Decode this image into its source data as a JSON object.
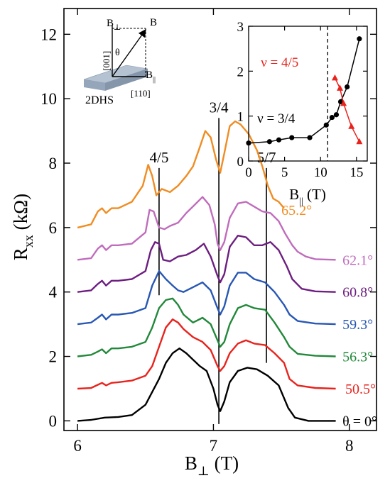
{
  "chart_data": [
    {
      "type": "line",
      "title": "",
      "xlabel_main": "B",
      "xlabel_sub": "⊥",
      "xlabel_unit": "(T)",
      "ylabel_main": "R",
      "ylabel_sub": "xx",
      "ylabel_unit": "(kΩ)",
      "xlim": [
        5.9,
        8.2
      ],
      "ylim": [
        -0.3,
        12.8
      ],
      "xticks": [
        6,
        7,
        8
      ],
      "yticks": [
        0,
        2,
        4,
        6,
        8,
        10,
        12
      ],
      "grid": false,
      "markers": [
        {
          "label": "4/5",
          "x": 6.6,
          "y_from": 3.9,
          "y_to": 7.85
        },
        {
          "label": "3/4",
          "x": 7.04,
          "y_from": -0.1,
          "y_to": 9.4
        },
        {
          "label": "5/7",
          "x": 7.39,
          "y_from": 1.8,
          "y_to": 7.85
        }
      ],
      "series": [
        {
          "name": "θ = 0°",
          "color": "#000000",
          "label_x": 7.95,
          "label_y": 0,
          "x": [
            6.0,
            6.1,
            6.2,
            6.3,
            6.4,
            6.5,
            6.6,
            6.65,
            6.7,
            6.75,
            6.8,
            6.85,
            6.9,
            6.95,
            7.0,
            7.03,
            7.05,
            7.08,
            7.12,
            7.18,
            7.25,
            7.32,
            7.4,
            7.48,
            7.55,
            7.6,
            7.7,
            7.9
          ],
          "y": [
            0.0,
            0.03,
            0.1,
            0.12,
            0.18,
            0.5,
            1.3,
            1.8,
            2.1,
            2.25,
            2.1,
            1.9,
            1.7,
            1.55,
            1.0,
            0.5,
            0.3,
            0.6,
            1.2,
            1.55,
            1.65,
            1.6,
            1.4,
            1.1,
            0.4,
            0.1,
            0.0,
            0.0
          ]
        },
        {
          "name": "50.5°",
          "color": "#e8231d",
          "label_x": 7.97,
          "label_y": 1.0,
          "x": [
            6.0,
            6.1,
            6.15,
            6.18,
            6.21,
            6.25,
            6.3,
            6.4,
            6.5,
            6.55,
            6.6,
            6.65,
            6.7,
            6.74,
            6.78,
            6.85,
            6.92,
            6.98,
            7.03,
            7.05,
            7.08,
            7.12,
            7.18,
            7.24,
            7.3,
            7.38,
            7.45,
            7.52,
            7.56,
            7.62,
            7.75,
            7.9
          ],
          "y": [
            1.0,
            1.02,
            1.12,
            1.18,
            1.1,
            1.18,
            1.2,
            1.25,
            1.4,
            1.7,
            2.3,
            2.9,
            3.15,
            3.05,
            2.85,
            2.6,
            2.45,
            2.2,
            1.7,
            1.55,
            1.7,
            2.1,
            2.4,
            2.5,
            2.4,
            2.35,
            2.1,
            1.8,
            1.3,
            1.1,
            1.02,
            1.0
          ]
        },
        {
          "name": "56.3°",
          "color": "#22883a",
          "label_x": 7.95,
          "label_y": 2.0,
          "x": [
            6.0,
            6.1,
            6.15,
            6.18,
            6.21,
            6.25,
            6.3,
            6.4,
            6.5,
            6.55,
            6.6,
            6.65,
            6.7,
            6.74,
            6.78,
            6.85,
            6.92,
            6.98,
            7.03,
            7.05,
            7.08,
            7.12,
            7.18,
            7.24,
            7.3,
            7.38,
            7.45,
            7.52,
            7.56,
            7.62,
            7.75,
            7.9
          ],
          "y": [
            2.0,
            2.05,
            2.15,
            2.22,
            2.1,
            2.25,
            2.25,
            2.3,
            2.45,
            2.9,
            3.5,
            3.75,
            3.8,
            3.6,
            3.3,
            3.05,
            3.2,
            3.0,
            2.5,
            2.3,
            2.45,
            3.0,
            3.5,
            3.6,
            3.5,
            3.45,
            3.05,
            2.6,
            2.3,
            2.08,
            2.02,
            2.0
          ]
        },
        {
          "name": "59.3°",
          "color": "#2857b4",
          "label_x": 7.95,
          "label_y": 3.0,
          "x": [
            6.0,
            6.1,
            6.15,
            6.18,
            6.21,
            6.25,
            6.3,
            6.4,
            6.5,
            6.55,
            6.6,
            6.65,
            6.7,
            6.74,
            6.78,
            6.85,
            6.92,
            6.98,
            7.03,
            7.05,
            7.08,
            7.12,
            7.18,
            7.24,
            7.3,
            7.38,
            7.45,
            7.52,
            7.56,
            7.62,
            7.75,
            7.9
          ],
          "y": [
            3.0,
            3.05,
            3.2,
            3.3,
            3.15,
            3.3,
            3.3,
            3.35,
            3.5,
            4.2,
            4.65,
            4.4,
            4.2,
            4.05,
            4.0,
            4.15,
            4.3,
            4.05,
            3.5,
            3.3,
            3.55,
            4.2,
            4.6,
            4.6,
            4.4,
            4.3,
            4.0,
            3.6,
            3.3,
            3.1,
            3.02,
            3.0
          ]
        },
        {
          "name": "60.8°",
          "color": "#6d1e80",
          "label_x": 7.95,
          "label_y": 4.0,
          "x": [
            6.0,
            6.1,
            6.15,
            6.18,
            6.21,
            6.25,
            6.3,
            6.4,
            6.5,
            6.54,
            6.57,
            6.6,
            6.63,
            6.68,
            6.74,
            6.8,
            6.87,
            6.93,
            6.98,
            7.03,
            7.05,
            7.08,
            7.12,
            7.18,
            7.24,
            7.3,
            7.36,
            7.42,
            7.48,
            7.54,
            7.58,
            7.65,
            7.75,
            7.9
          ],
          "y": [
            4.0,
            4.05,
            4.25,
            4.35,
            4.2,
            4.35,
            4.35,
            4.4,
            4.65,
            5.3,
            5.55,
            5.5,
            5.0,
            4.95,
            5.1,
            5.15,
            5.3,
            5.5,
            5.1,
            4.5,
            4.3,
            4.55,
            5.4,
            5.75,
            5.7,
            5.45,
            5.45,
            5.55,
            5.3,
            4.8,
            4.4,
            4.1,
            4.02,
            4.0
          ]
        },
        {
          "name": "62.1°",
          "color": "#c06cbc",
          "label_x": 7.95,
          "label_y": 5.0,
          "x": [
            6.0,
            6.1,
            6.15,
            6.18,
            6.21,
            6.25,
            6.3,
            6.4,
            6.5,
            6.53,
            6.56,
            6.6,
            6.64,
            6.68,
            6.74,
            6.8,
            6.86,
            6.92,
            6.97,
            7.01,
            7.03,
            7.05,
            7.08,
            7.12,
            7.18,
            7.24,
            7.3,
            7.36,
            7.42,
            7.48,
            7.53,
            7.58,
            7.62,
            7.68,
            7.75,
            7.9
          ],
          "y": [
            5.0,
            5.05,
            5.35,
            5.45,
            5.3,
            5.45,
            5.45,
            5.5,
            5.85,
            6.55,
            6.5,
            6.0,
            5.95,
            6.05,
            6.15,
            6.45,
            6.7,
            6.95,
            6.7,
            6.1,
            5.5,
            5.3,
            5.55,
            6.3,
            6.75,
            6.8,
            6.65,
            6.5,
            6.45,
            6.2,
            5.8,
            5.45,
            5.25,
            5.1,
            5.02,
            5.0
          ]
        },
        {
          "name": "65.2°",
          "color": "#f08c22",
          "label_x": 7.5,
          "label_y": 6.55,
          "x": [
            6.0,
            6.1,
            6.15,
            6.18,
            6.21,
            6.25,
            6.3,
            6.4,
            6.48,
            6.52,
            6.55,
            6.58,
            6.62,
            6.68,
            6.74,
            6.8,
            6.85,
            6.9,
            6.94,
            6.98,
            7.02,
            7.05,
            7.08,
            7.12,
            7.16,
            7.2,
            7.26,
            7.32,
            7.36,
            7.4,
            7.44,
            7.48,
            7.52
          ],
          "y": [
            6.0,
            6.1,
            6.5,
            6.6,
            6.45,
            6.6,
            6.6,
            6.8,
            7.3,
            7.95,
            7.6,
            7.0,
            7.2,
            7.1,
            7.3,
            7.6,
            7.9,
            8.5,
            9.0,
            8.8,
            8.1,
            7.7,
            8.3,
            9.15,
            9.3,
            9.2,
            8.9,
            8.4,
            7.9,
            7.3,
            6.9,
            6.8,
            6.6
          ]
        }
      ]
    },
    {
      "type": "scatter",
      "title": "",
      "xlabel_main": "B",
      "xlabel_sub": "||",
      "xlabel_unit": "(T)",
      "xlim": [
        0,
        16.5
      ],
      "ylim": [
        0,
        3
      ],
      "xticks": [
        0,
        5,
        10,
        15
      ],
      "yticks": [
        0,
        1,
        2,
        3
      ],
      "grid": false,
      "dashed_line_x": 11,
      "series": [
        {
          "name": "ν = 3/4",
          "color": "#000000",
          "marker": "circle",
          "label_x": 1.2,
          "label_y": 0.85,
          "x": [
            0,
            2.9,
            4.2,
            6,
            8.5,
            10.8,
            11.6,
            12.2,
            12.8,
            13.7,
            15.4
          ],
          "y": [
            0.4,
            0.43,
            0.47,
            0.52,
            0.52,
            0.8,
            0.97,
            1.03,
            1.32,
            1.65,
            2.72
          ]
        },
        {
          "name": "ν = 4/5",
          "color": "#e8231d",
          "marker": "triangle",
          "label_x": 1.7,
          "label_y": 2.1,
          "x": [
            12.0,
            12.7,
            13.2,
            14.3,
            15.4
          ],
          "y": [
            1.85,
            1.62,
            1.28,
            0.77,
            0.43
          ]
        }
      ]
    }
  ],
  "schematic": {
    "b_perp_main": "B",
    "b_perp_sub": "⊥",
    "b_label": "B",
    "theta_label": "θ",
    "dir_001": "[001]",
    "dir_110": "[110]",
    "b_par_main": "B",
    "b_par_sub": "||",
    "sample_label": "2DHS"
  },
  "colors": {
    "background": "#ffffff",
    "axes": "#000000",
    "sample_top": "#b4c2d2",
    "sample_side": "#8696aa"
  }
}
